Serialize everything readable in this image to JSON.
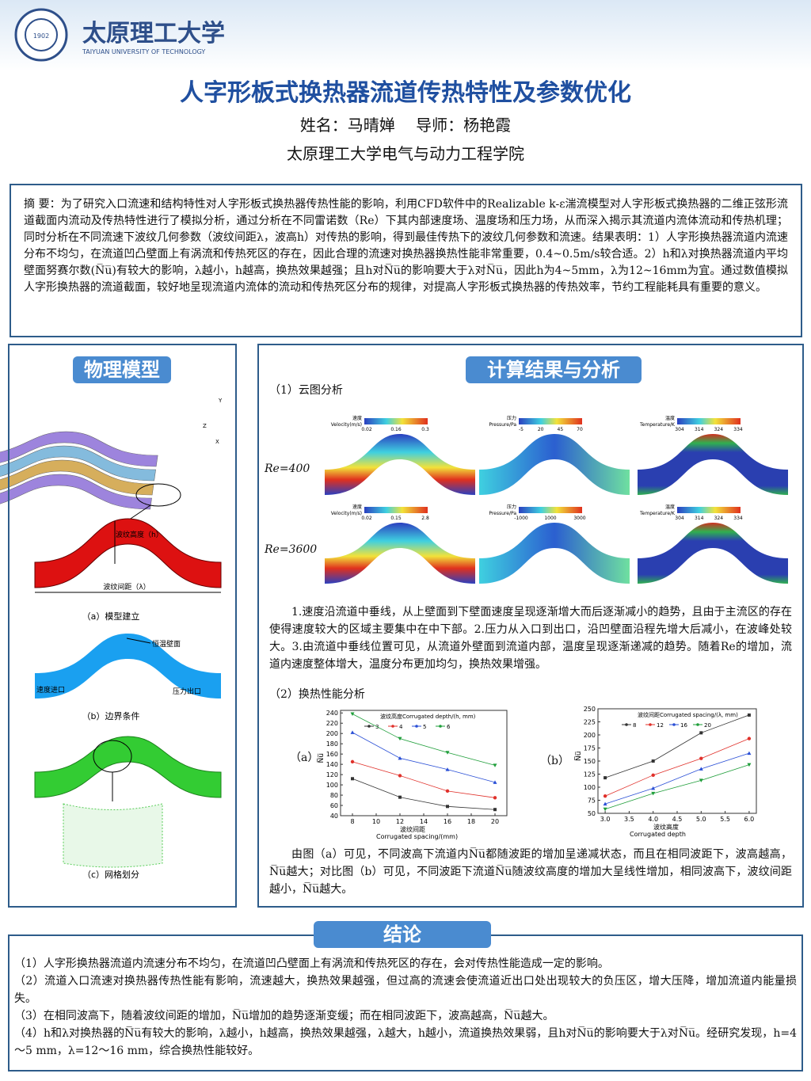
{
  "header": {
    "logo_year": "1902",
    "university_cn": "太原理工大学",
    "university_en": "TAIYUAN UNIVERSITY OF TECHNOLOGY",
    "title": "人字形板式换热器流道传热特性及参数优化",
    "authors": "姓名：马晴婵　 导师：杨艳霞",
    "school": "太原理工大学电气与动力工程学院"
  },
  "abstract": "摘 要：为了研究入口流速和结构特性对人字形板式换热器传热性能的影响，利用CFD软件中的Realizable k-ε湍流模型对人字形板式换热器的二维正弦形流道截面内流动及传热特性进行了模拟分析，通过分析在不同雷诺数（Re）下其内部速度场、温度场和压力场，从而深入揭示其流道内流体流动和传热机理；同时分析在不同流速下波纹几何参数（波纹间距λ，波高h）对传热的影响，得到最佳传热下的波纹几何参数和流速。结果表明：1）人字形换热器流道内流速分布不均匀，在流道凹凸壁面上有涡流和传热死区的存在，因此合理的流速对换热器换热性能非常重要，0.4~0.5m/s较合适。2）h和λ对换热器流道内平均壁面努赛尔数(N̅u̅)有较大的影响，λ越小，h越高，换热效果越强；且h对N̅u̅的影响要大于λ对N̅u̅，因此h为4~5mm，λ为12~16mm为宜。通过数值模拟人字形换热器的流道截面，较好地呈现流道内流体的流动和传热死区分布的规律，对提高人字形板式换热器的传热效率，节约工程能耗具有重要的意义。",
  "model": {
    "heading": "物理模型",
    "axes": [
      "Y",
      "Z",
      "X"
    ],
    "height_label": "波纹高度（h）",
    "spacing_label": "波纹间距（λ）",
    "caption_a": "（a）模型建立",
    "wall_label": "恒温壁面",
    "inlet_label": "速度进口",
    "outlet_label": "压力出口",
    "caption_b": "（b）边界条件",
    "caption_c": "（c）网格划分"
  },
  "results": {
    "heading": "计算结果与分析",
    "section1": "（1）云图分析",
    "cases": [
      "Re=400",
      "Re=3600"
    ],
    "contours": [
      [
        {
          "name": "速度",
          "unit": "Velocity(m/s)",
          "ticks": [
            "0.02",
            "0.16",
            "0.3"
          ]
        },
        {
          "name": "压力",
          "unit": "Pressure/Pa",
          "ticks": [
            "-5",
            "20",
            "45",
            "70"
          ]
        },
        {
          "name": "温度",
          "unit": "Temperature/K",
          "ticks": [
            "304",
            "314",
            "324",
            "334"
          ]
        }
      ],
      [
        {
          "name": "速度",
          "unit": "Velocity(m/s)",
          "ticks": [
            "0.02",
            "0.15",
            "2.8"
          ]
        },
        {
          "name": "压力",
          "unit": "Pressure/Pa",
          "ticks": [
            "-1000",
            "1000",
            "3000"
          ]
        },
        {
          "name": "温度",
          "unit": "Temperature/K",
          "ticks": [
            "304",
            "314",
            "324",
            "334"
          ]
        }
      ]
    ],
    "paragraph1": "1.速度沿流道中垂线，从上壁面到下壁面速度呈现逐渐增大而后逐渐减小的趋势，且由于主流区的存在使得速度较大的区域主要集中在中下部。2.压力从入口到出口，沿凹壁面沿程先增大后减小，在波峰处较大。3.由流道中垂线位置可见，从流道外壁面到流道内部，温度呈现逐渐递减的趋势。随着Re的增加，流道内速度整体增大，温度分布更加均匀，换热效果增强。",
    "section2": "（2）换热性能分析",
    "panel_labels": [
      "（a）",
      "（b）"
    ],
    "charts": [
      {
        "type": "line",
        "legend_title": "波纹高度Corrugated depth/(h, mm)",
        "xlabel": [
          "波纹间距",
          "Corrugated spacing/(mm)"
        ],
        "ylabel": "N̅u̅",
        "x": [
          8,
          12,
          16,
          20
        ],
        "xlim": [
          7,
          21
        ],
        "xticks": [
          8,
          10,
          12,
          14,
          16,
          18,
          20
        ],
        "ylim": [
          40,
          245
        ],
        "yticks": [
          40,
          60,
          80,
          100,
          120,
          140,
          160,
          180,
          200,
          220,
          240
        ],
        "series": [
          {
            "name": "3",
            "color": "#333333",
            "values": [
              112,
              76,
              58,
              52
            ]
          },
          {
            "name": "4",
            "color": "#e0302a",
            "values": [
              145,
              118,
              88,
              75
            ]
          },
          {
            "name": "5",
            "color": "#2a4fd6",
            "values": [
              202,
              152,
              130,
              105
            ]
          },
          {
            "name": "6",
            "color": "#1f9e3a",
            "values": [
              238,
              190,
              163,
              138
            ]
          }
        ]
      },
      {
        "type": "line",
        "legend_title": "波纹间距Corrugated spacing/(λ, mm)",
        "xlabel": [
          "波纹高度",
          "Corrugated depth"
        ],
        "ylabel": "N̅u̅",
        "x": [
          3,
          4,
          5,
          6
        ],
        "xlim": [
          2.85,
          6.15
        ],
        "xticks": [
          {
            "value": 3,
            "label": "3.0"
          },
          3.5,
          {
            "value": 4,
            "label": "4.0"
          },
          4.5,
          {
            "value": 5,
            "label": "5.0"
          },
          5.5,
          {
            "value": 6,
            "label": "6.0"
          }
        ],
        "ylim": [
          50,
          250
        ],
        "yticks": [
          50,
          75,
          100,
          125,
          150,
          175,
          200,
          225,
          250
        ],
        "series": [
          {
            "name": "8",
            "color": "#333333",
            "values": [
              118,
              150,
              204,
              238
            ]
          },
          {
            "name": "12",
            "color": "#e0302a",
            "values": [
              83,
              123,
              155,
              193
            ]
          },
          {
            "name": "16",
            "color": "#2a4fd6",
            "values": [
              68,
              98,
              135,
              165
            ]
          },
          {
            "name": "20",
            "color": "#1f9e3a",
            "values": [
              58,
              88,
              113,
              143
            ]
          }
        ]
      }
    ],
    "paragraph2": "由图（a）可见，不同波高下流道内N̅u̅都随波距的增加呈递减状态，而且在相同波距下，波高越高，N̅u̅越大；对比图（b）可见，不同波距下流道N̅u̅随波纹高度的增加大呈线性增加，相同波高下，波纹间距越小，N̅u̅越大。"
  },
  "conclusion": {
    "heading": "结论",
    "items": [
      "（1）人字形换热器流道内流速分布不均匀，在流道凹凸壁面上有涡流和传热死区的存在，会对传热性能造成一定的影响。",
      "（2）流道入口流速对换热器传热性能有影响，流速越大，换热效果越强，但过高的流速会使流道近出口处出现较大的负压区，增大压降，增加流道内能量损失。",
      "（3）在相同波高下，随着波纹间距的增加，N̅u̅增加的趋势逐渐变缓；而在相同波距下，波高越高，N̅u̅越大。",
      "（4）h和λ对换热器的N̅u̅有较大的影响，λ越小，h越高，换热效果越强，λ越大，h越小，流道换热效果弱，且h对N̅u̅的影响要大于λ对N̅u̅。经研究发现，h=4～5 mm，λ=12～16 mm，综合换热性能较好。"
    ]
  }
}
